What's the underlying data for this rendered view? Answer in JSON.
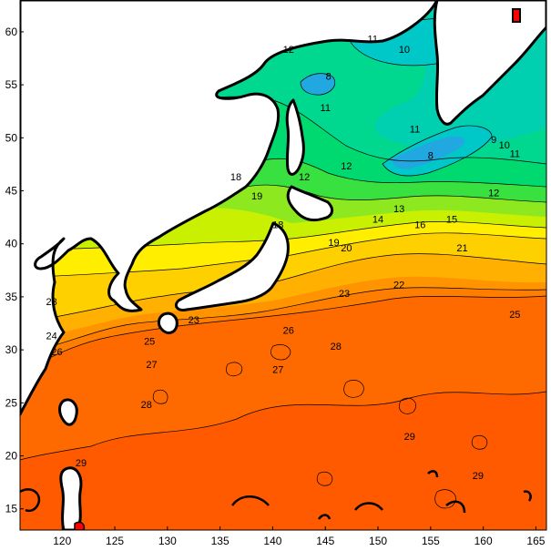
{
  "map": {
    "type": "sea-surface-temperature-contour-map",
    "region": "North-west Pacific",
    "colors": {
      "ocean_warm_29": "#ff5a00",
      "ocean_28": "#ff6a00",
      "ocean_27": "#ff7e00",
      "ocean_26": "#ff9400",
      "ocean_25": "#ffb000",
      "ocean_23": "#ffd000",
      "ocean_21": "#ffee00",
      "ocean_19": "#c8f000",
      "ocean_17": "#8ee820",
      "ocean_15": "#38e040",
      "ocean_13": "#00d870",
      "ocean_12": "#00d890",
      "ocean_11": "#00d0b0",
      "ocean_10": "#00c8c8",
      "ocean_8": "#22a8e0",
      "land": "#ffffff",
      "coast": "#000000",
      "hotspot": "#ff0000"
    },
    "x_axis": {
      "unit": "degrees longitude E",
      "range": [
        116,
        166
      ],
      "ticks": [
        "120",
        "125",
        "130",
        "135",
        "140",
        "145",
        "150",
        "155",
        "160",
        "165"
      ]
    },
    "y_axis": {
      "unit": "degrees latitude N",
      "range": [
        13,
        63
      ],
      "ticks": [
        "15",
        "20",
        "25",
        "30",
        "35",
        "40",
        "45",
        "50",
        "55",
        "60"
      ]
    },
    "contour_labels": [
      {
        "text": "12",
        "lon": 141.5,
        "lat": 58.0
      },
      {
        "text": "11",
        "lon": 149.5,
        "lat": 59.0
      },
      {
        "text": "10",
        "lon": 152.5,
        "lat": 58.0
      },
      {
        "text": "8",
        "lon": 145.3,
        "lat": 55.5
      },
      {
        "text": "11",
        "lon": 145.0,
        "lat": 52.5
      },
      {
        "text": "12",
        "lon": 143.0,
        "lat": 46.0
      },
      {
        "text": "11",
        "lon": 153.5,
        "lat": 50.5
      },
      {
        "text": "8",
        "lon": 155.0,
        "lat": 48.0
      },
      {
        "text": "9",
        "lon": 161.0,
        "lat": 49.5
      },
      {
        "text": "10",
        "lon": 162.0,
        "lat": 49.0
      },
      {
        "text": "11",
        "lon": 163.0,
        "lat": 48.2
      },
      {
        "text": "12",
        "lon": 147.0,
        "lat": 47.0
      },
      {
        "text": "12",
        "lon": 161.0,
        "lat": 44.5
      },
      {
        "text": "13",
        "lon": 152.0,
        "lat": 43.0
      },
      {
        "text": "14",
        "lon": 150.0,
        "lat": 42.0
      },
      {
        "text": "16",
        "lon": 154.0,
        "lat": 41.5
      },
      {
        "text": "15",
        "lon": 157.0,
        "lat": 42.0
      },
      {
        "text": "18",
        "lon": 140.5,
        "lat": 41.5
      },
      {
        "text": "18",
        "lon": 136.5,
        "lat": 46.0
      },
      {
        "text": "19",
        "lon": 138.5,
        "lat": 44.2
      },
      {
        "text": "19",
        "lon": 145.8,
        "lat": 39.8
      },
      {
        "text": "20",
        "lon": 147.0,
        "lat": 39.3
      },
      {
        "text": "21",
        "lon": 158.0,
        "lat": 39.3
      },
      {
        "text": "22",
        "lon": 152.0,
        "lat": 35.8
      },
      {
        "text": "23",
        "lon": 146.8,
        "lat": 35.0
      },
      {
        "text": "25",
        "lon": 163.0,
        "lat": 33.0
      },
      {
        "text": "23",
        "lon": 132.5,
        "lat": 32.5
      },
      {
        "text": "25",
        "lon": 128.3,
        "lat": 30.5
      },
      {
        "text": "26",
        "lon": 141.5,
        "lat": 31.5
      },
      {
        "text": "24",
        "lon": 119.0,
        "lat": 31.0
      },
      {
        "text": "26",
        "lon": 119.5,
        "lat": 29.5
      },
      {
        "text": "27",
        "lon": 128.5,
        "lat": 28.3
      },
      {
        "text": "27",
        "lon": 140.5,
        "lat": 27.8
      },
      {
        "text": "28",
        "lon": 146.0,
        "lat": 30.0
      },
      {
        "text": "28",
        "lon": 128.0,
        "lat": 24.5
      },
      {
        "text": "29",
        "lon": 153.0,
        "lat": 21.5
      },
      {
        "text": "29",
        "lon": 121.8,
        "lat": 19.0
      },
      {
        "text": "29",
        "lon": 159.5,
        "lat": 17.8
      },
      {
        "text": "23",
        "lon": 119.0,
        "lat": 34.2
      }
    ]
  }
}
